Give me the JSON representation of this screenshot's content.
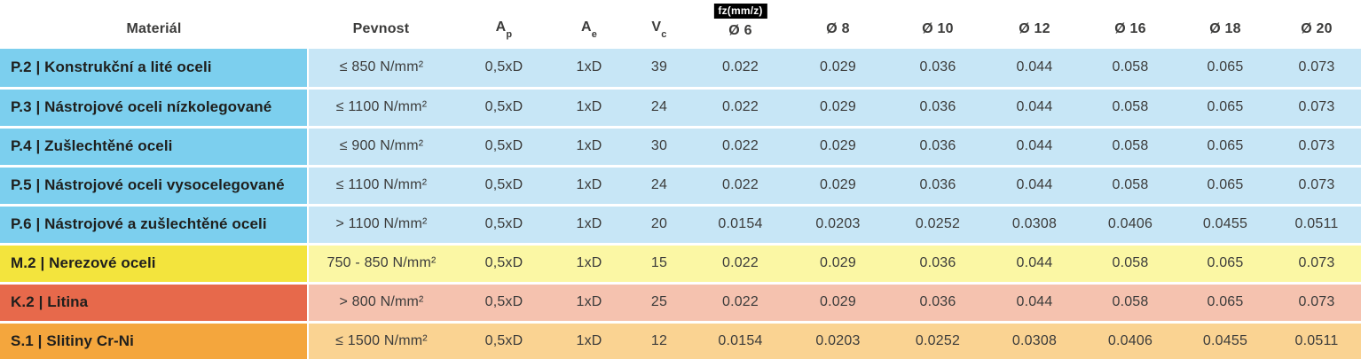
{
  "table": {
    "headers": {
      "material": "Materiál",
      "pevnost": "Pevnost",
      "ap": {
        "base": "A",
        "sub": "p"
      },
      "ae": {
        "base": "A",
        "sub": "e"
      },
      "vc": {
        "base": "V",
        "sub": "c"
      },
      "fz_badge": "fz(mm/z)",
      "diameters": [
        "Ø 6",
        "Ø 8",
        "Ø 10",
        "Ø 12",
        "Ø 16",
        "Ø 18",
        "Ø 20"
      ]
    },
    "themes": {
      "blue": {
        "accent": "#7ccfee",
        "tint": "#c7e6f6"
      },
      "yellow": {
        "accent": "#f3e43d",
        "tint": "#fbf7a4"
      },
      "red": {
        "accent": "#e7694b",
        "tint": "#f5c2af"
      },
      "orange": {
        "accent": "#f4a63d",
        "tint": "#fad392"
      }
    },
    "rows": [
      {
        "material": "P.2 | Konstrukční a lité oceli",
        "pevnost": "≤ 850 N/mm²",
        "ap": "0,5xD",
        "ae": "1xD",
        "vc": "39",
        "fz": [
          "0.022",
          "0.029",
          "0.036",
          "0.044",
          "0.058",
          "0.065",
          "0.073"
        ],
        "theme": "blue"
      },
      {
        "material": "P.3 | Nástrojové oceli nízkolegované",
        "pevnost": "≤ 1100 N/mm²",
        "ap": "0,5xD",
        "ae": "1xD",
        "vc": "24",
        "fz": [
          "0.022",
          "0.029",
          "0.036",
          "0.044",
          "0.058",
          "0.065",
          "0.073"
        ],
        "theme": "blue"
      },
      {
        "material": "P.4 | Zušlechtěné oceli",
        "pevnost": "≤ 900 N/mm²",
        "ap": "0,5xD",
        "ae": "1xD",
        "vc": "30",
        "fz": [
          "0.022",
          "0.029",
          "0.036",
          "0.044",
          "0.058",
          "0.065",
          "0.073"
        ],
        "theme": "blue"
      },
      {
        "material": "P.5 | Nástrojové oceli vysocelegované",
        "pevnost": "≤ 1100 N/mm²",
        "ap": "0,5xD",
        "ae": "1xD",
        "vc": "24",
        "fz": [
          "0.022",
          "0.029",
          "0.036",
          "0.044",
          "0.058",
          "0.065",
          "0.073"
        ],
        "theme": "blue"
      },
      {
        "material": "P.6 | Nástrojové a zušlechtěné oceli",
        "pevnost": "> 1100 N/mm²",
        "ap": "0,5xD",
        "ae": "1xD",
        "vc": "20",
        "fz": [
          "0.0154",
          "0.0203",
          "0.0252",
          "0.0308",
          "0.0406",
          "0.0455",
          "0.0511"
        ],
        "theme": "blue"
      },
      {
        "material": "M.2 | Nerezové oceli",
        "pevnost": "750 - 850 N/mm²",
        "ap": "0,5xD",
        "ae": "1xD",
        "vc": "15",
        "fz": [
          "0.022",
          "0.029",
          "0.036",
          "0.044",
          "0.058",
          "0.065",
          "0.073"
        ],
        "theme": "yellow"
      },
      {
        "material": "K.2 | Litina",
        "pevnost": "> 800 N/mm²",
        "ap": "0,5xD",
        "ae": "1xD",
        "vc": "25",
        "fz": [
          "0.022",
          "0.029",
          "0.036",
          "0.044",
          "0.058",
          "0.065",
          "0.073"
        ],
        "theme": "red"
      },
      {
        "material": "S.1 | Slitiny Cr-Ni",
        "pevnost": "≤ 1500 N/mm²",
        "ap": "0,5xD",
        "ae": "1xD",
        "vc": "12",
        "fz": [
          "0.0154",
          "0.0203",
          "0.0252",
          "0.0308",
          "0.0406",
          "0.0455",
          "0.0511"
        ],
        "theme": "orange"
      }
    ]
  }
}
